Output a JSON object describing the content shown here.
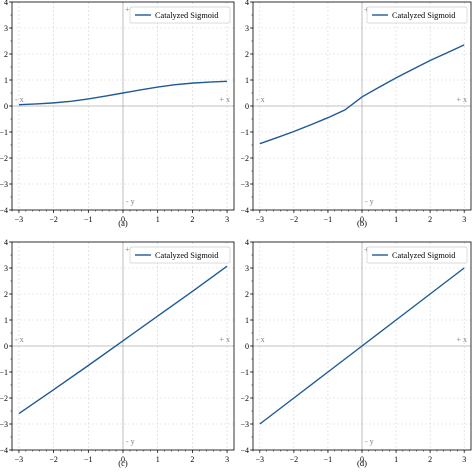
{
  "figure": {
    "panel_captions": [
      "(a)",
      "(b)",
      "(c)",
      "(d)"
    ]
  },
  "chart_data": [
    {
      "type": "line",
      "caption": "(a)",
      "legend": {
        "entries": [
          "Catalyzed Sigmoid"
        ],
        "placement": "top-right"
      },
      "xlim": [
        -3.2,
        3.2
      ],
      "ylim": [
        -4,
        4
      ],
      "xticks": [
        -3,
        -2,
        -1,
        0,
        1,
        2,
        3
      ],
      "xtick_labels": [
        "−3",
        "−2",
        "−1",
        "0",
        "1",
        "2",
        "3"
      ],
      "yticks": [
        -4,
        -3,
        -2,
        -1,
        0,
        1,
        2,
        3,
        4
      ],
      "ytick_labels": [
        "−4",
        "−3",
        "−2",
        "−1",
        "0",
        "1",
        "2",
        "3",
        "4"
      ],
      "axis_annotations": {
        "pos_x": "+ x",
        "neg_x": "- x",
        "pos_y": "+ y",
        "neg_y": "- y"
      },
      "grid": true,
      "series": [
        {
          "name": "Catalyzed Sigmoid",
          "color": "#1f5a96",
          "x": [
            -3,
            -2.5,
            -2,
            -1.5,
            -1,
            -0.5,
            0,
            0.5,
            1,
            1.5,
            2,
            2.5,
            3
          ],
          "y": [
            0.05,
            0.08,
            0.12,
            0.18,
            0.27,
            0.38,
            0.5,
            0.62,
            0.73,
            0.82,
            0.88,
            0.92,
            0.95
          ]
        }
      ]
    },
    {
      "type": "line",
      "caption": "(b)",
      "legend": {
        "entries": [
          "Catalyzed Sigmoid"
        ],
        "placement": "top-right"
      },
      "xlim": [
        -3.2,
        3.2
      ],
      "ylim": [
        -4,
        4
      ],
      "xticks": [
        -3,
        -2,
        -1,
        0,
        1,
        2,
        3
      ],
      "xtick_labels": [
        "−3",
        "−2",
        "−1",
        "0",
        "1",
        "2",
        "3"
      ],
      "yticks": [
        -4,
        -3,
        -2,
        -1,
        0,
        1,
        2,
        3,
        4
      ],
      "ytick_labels": [
        "−4",
        "−3",
        "−2",
        "−1",
        "0",
        "1",
        "2",
        "3",
        "4"
      ],
      "axis_annotations": {
        "pos_x": "+ x",
        "neg_x": "- x",
        "pos_y": "+ y",
        "neg_y": "- y"
      },
      "grid": true,
      "series": [
        {
          "name": "Catalyzed Sigmoid",
          "color": "#1f5a96",
          "x": [
            -3,
            -2.5,
            -2,
            -1.5,
            -1,
            -0.5,
            0,
            0.5,
            1,
            1.5,
            2,
            2.5,
            3
          ],
          "y": [
            -1.45,
            -1.22,
            -0.98,
            -0.72,
            -0.45,
            -0.15,
            0.35,
            0.72,
            1.08,
            1.42,
            1.75,
            2.05,
            2.35
          ]
        }
      ]
    },
    {
      "type": "line",
      "caption": "(c)",
      "legend": {
        "entries": [
          "Catalyzed Sigmoid"
        ],
        "placement": "top-right"
      },
      "xlim": [
        -3.2,
        3.2
      ],
      "ylim": [
        -4,
        4
      ],
      "xticks": [
        -3,
        -2,
        -1,
        0,
        1,
        2,
        3
      ],
      "xtick_labels": [
        "−3",
        "−2",
        "−1",
        "0",
        "1",
        "2",
        "3"
      ],
      "yticks": [
        -4,
        -3,
        -2,
        -1,
        0,
        1,
        2,
        3,
        4
      ],
      "ytick_labels": [
        "−4",
        "−3",
        "−2",
        "−1",
        "0",
        "1",
        "2",
        "3",
        "4"
      ],
      "axis_annotations": {
        "pos_x": "+ x",
        "neg_x": "- x",
        "pos_y": "+ y",
        "neg_y": "- y"
      },
      "grid": true,
      "series": [
        {
          "name": "Catalyzed Sigmoid",
          "color": "#1f5a96",
          "x": [
            -3,
            -2,
            -1,
            0,
            1,
            2,
            3
          ],
          "y": [
            -2.6,
            -1.68,
            -0.75,
            0.2,
            1.15,
            2.1,
            3.07
          ]
        }
      ]
    },
    {
      "type": "line",
      "caption": "(d)",
      "legend": {
        "entries": [
          "Catalyzed Sigmoid"
        ],
        "placement": "top-right"
      },
      "xlim": [
        -3.2,
        3.2
      ],
      "ylim": [
        -4,
        4
      ],
      "xticks": [
        -3,
        -2,
        -1,
        0,
        1,
        2,
        3
      ],
      "xtick_labels": [
        "−3",
        "−2",
        "−1",
        "0",
        "1",
        "2",
        "3"
      ],
      "yticks": [
        -4,
        -3,
        -2,
        -1,
        0,
        1,
        2,
        3,
        4
      ],
      "ytick_labels": [
        "−4",
        "−3",
        "−2",
        "−1",
        "0",
        "1",
        "2",
        "3",
        "4"
      ],
      "axis_annotations": {
        "pos_x": "+ x",
        "neg_x": "- x",
        "pos_y": "+ y",
        "neg_y": "- y"
      },
      "grid": true,
      "series": [
        {
          "name": "Catalyzed Sigmoid",
          "color": "#1f5a96",
          "x": [
            -3,
            -2,
            -1,
            0,
            1,
            2,
            3
          ],
          "y": [
            -3.0,
            -2.0,
            -1.0,
            0.0,
            1.0,
            2.0,
            3.0
          ]
        }
      ]
    }
  ]
}
